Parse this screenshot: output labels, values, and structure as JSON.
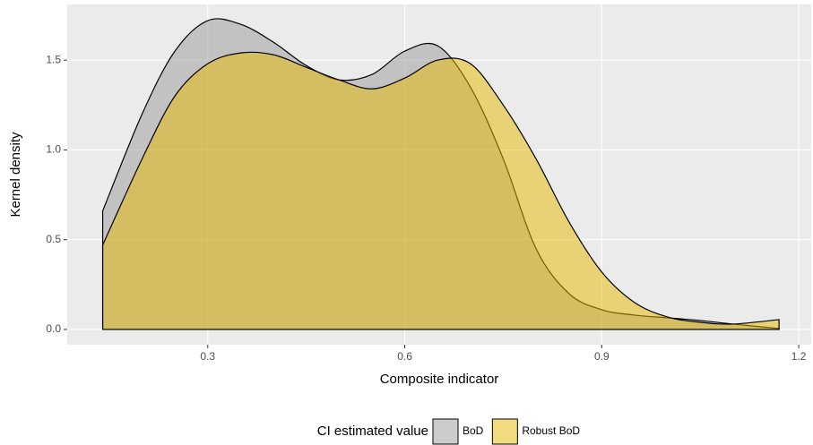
{
  "chart_data": {
    "type": "density",
    "x_label": "Composite indicator",
    "y_label": "Kernel density",
    "legend_title": "CI estimated value",
    "legend_position": "bottom",
    "grid": true,
    "x": [
      0.14,
      0.2,
      0.25,
      0.3,
      0.35,
      0.4,
      0.45,
      0.5,
      0.55,
      0.6,
      0.65,
      0.7,
      0.75,
      0.8,
      0.85,
      0.9,
      0.95,
      1.0,
      1.05,
      1.1,
      1.17
    ],
    "series": [
      {
        "name": "BoD",
        "color": "#999999",
        "values": [
          0.66,
          1.2,
          1.55,
          1.72,
          1.7,
          1.6,
          1.47,
          1.39,
          1.42,
          1.55,
          1.58,
          1.35,
          0.95,
          0.45,
          0.2,
          0.11,
          0.08,
          0.065,
          0.05,
          0.03,
          0.005
        ]
      },
      {
        "name": "Robust BoD",
        "color": "#E7B800",
        "values": [
          0.47,
          0.95,
          1.3,
          1.48,
          1.54,
          1.53,
          1.46,
          1.39,
          1.34,
          1.4,
          1.5,
          1.48,
          1.25,
          0.95,
          0.6,
          0.32,
          0.15,
          0.07,
          0.04,
          0.03,
          0.055
        ]
      }
    ],
    "xlim": [
      0.086,
      1.219
    ],
    "ylim": [
      -0.085,
      1.81
    ],
    "xticks": [
      0.3,
      0.6,
      0.9,
      1.2
    ],
    "yticks": [
      {
        "value": 0,
        "label": "0.0"
      },
      0.5,
      {
        "value": 1,
        "label": "1.0"
      },
      1.5
    ]
  }
}
